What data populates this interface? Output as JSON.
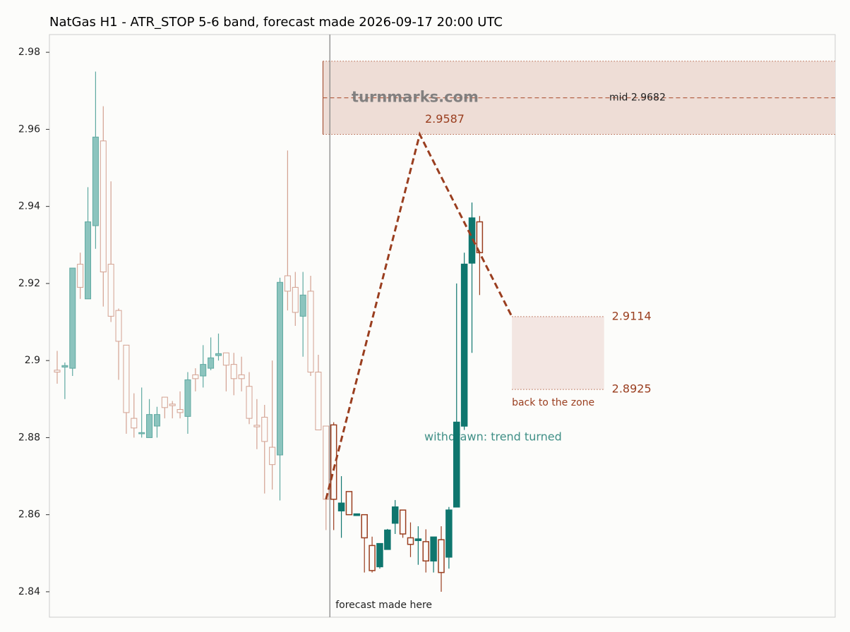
{
  "chart_data": {
    "type": "candlestick",
    "title": "NatGas H1 - ATR_STOP 5-6 band, forecast made 2026-09-17 20:00 UTC",
    "ylim": [
      2.8334,
      2.9846
    ],
    "yticks": [
      2.84,
      2.86,
      2.88,
      2.9,
      2.92,
      2.94,
      2.96,
      2.98
    ],
    "up_color": "#0f766e",
    "down_color": "#9a3e1f",
    "series": [
      {
        "open": [
          2.8975,
          2.8983,
          2.898,
          2.925,
          2.916,
          2.935,
          2.957,
          2.925,
          2.913,
          2.904,
          2.885,
          2.881,
          2.88,
          2.883,
          2.8905,
          2.8887,
          2.8873,
          2.8855,
          2.8963,
          2.896,
          2.898,
          2.9013,
          2.902,
          2.899,
          2.8963,
          2.8933,
          2.8832,
          2.8853,
          2.8775,
          2.8755,
          2.922,
          2.919,
          2.9115,
          2.918,
          2.897,
          2.883
        ],
        "high": [
          2.9025,
          2.8995,
          2.924,
          2.928,
          2.945,
          2.975,
          2.966,
          2.9465,
          2.9135,
          2.904,
          2.8915,
          2.893,
          2.89,
          2.888,
          2.8905,
          2.8895,
          2.892,
          2.897,
          2.898,
          2.904,
          2.906,
          2.907,
          2.902,
          2.902,
          2.901,
          2.897,
          2.89,
          2.8885,
          2.9,
          2.9215,
          2.9545,
          2.923,
          2.923,
          2.922,
          2.9015,
          2.883
        ],
        "low": [
          2.894,
          2.89,
          2.896,
          2.916,
          2.916,
          2.929,
          2.914,
          2.91,
          2.895,
          2.881,
          2.88,
          2.88,
          2.88,
          2.88,
          2.885,
          2.885,
          2.885,
          2.881,
          2.892,
          2.893,
          2.8975,
          2.9,
          2.892,
          2.891,
          2.892,
          2.8835,
          2.877,
          2.8655,
          2.8665,
          2.8637,
          2.913,
          2.909,
          2.901,
          2.896,
          2.882,
          2.856
        ],
        "close": [
          2.897,
          2.8987,
          2.924,
          2.919,
          2.936,
          2.958,
          2.923,
          2.9115,
          2.905,
          2.8865,
          2.8825,
          2.8813,
          2.886,
          2.886,
          2.8878,
          2.8883,
          2.8865,
          2.895,
          2.8953,
          2.899,
          2.9007,
          2.9018,
          2.8988,
          2.8953,
          2.8953,
          2.885,
          2.8828,
          2.879,
          2.873,
          2.9203,
          2.918,
          2.9125,
          2.917,
          2.897,
          2.882,
          2.864
        ]
      },
      {
        "open": [
          2.8833,
          2.861,
          2.866,
          2.8598,
          2.86,
          2.852,
          2.8465,
          2.851,
          2.8578,
          2.8612,
          2.854,
          2.8533,
          2.853,
          2.848,
          2.8535,
          2.849,
          2.862,
          2.883,
          2.9253,
          2.936
        ],
        "high": [
          2.884,
          2.87,
          2.866,
          2.8602,
          2.86,
          2.8543,
          2.8525,
          2.8563,
          2.8638,
          2.8612,
          2.858,
          2.857,
          2.8562,
          2.8542,
          2.857,
          2.862,
          2.92,
          2.928,
          2.941,
          2.9375
        ],
        "low": [
          2.856,
          2.854,
          2.86,
          2.8598,
          2.845,
          2.845,
          2.846,
          2.851,
          2.855,
          2.854,
          2.849,
          2.847,
          2.845,
          2.845,
          2.84,
          2.846,
          2.862,
          2.882,
          2.902,
          2.917
        ],
        "close": [
          2.864,
          2.863,
          2.86,
          2.8602,
          2.854,
          2.8455,
          2.8525,
          2.856,
          2.862,
          2.855,
          2.8523,
          2.8537,
          2.848,
          2.8542,
          2.845,
          2.8612,
          2.884,
          2.925,
          2.937,
          2.928
        ]
      }
    ],
    "band": {
      "low": 2.9587,
      "high": 2.9777,
      "mid": 2.9682,
      "mid_label": "mid 2.9682"
    },
    "target_zone": {
      "low": 2.8925,
      "high": 2.9114,
      "label": "back to the zone"
    },
    "forecast_path": [
      2.864,
      2.9587,
      2.9114
    ],
    "forecast_label": "forecast made here",
    "withdrawn_label": "withdrawn: trend turned",
    "watermark": "turnmarks.com"
  }
}
